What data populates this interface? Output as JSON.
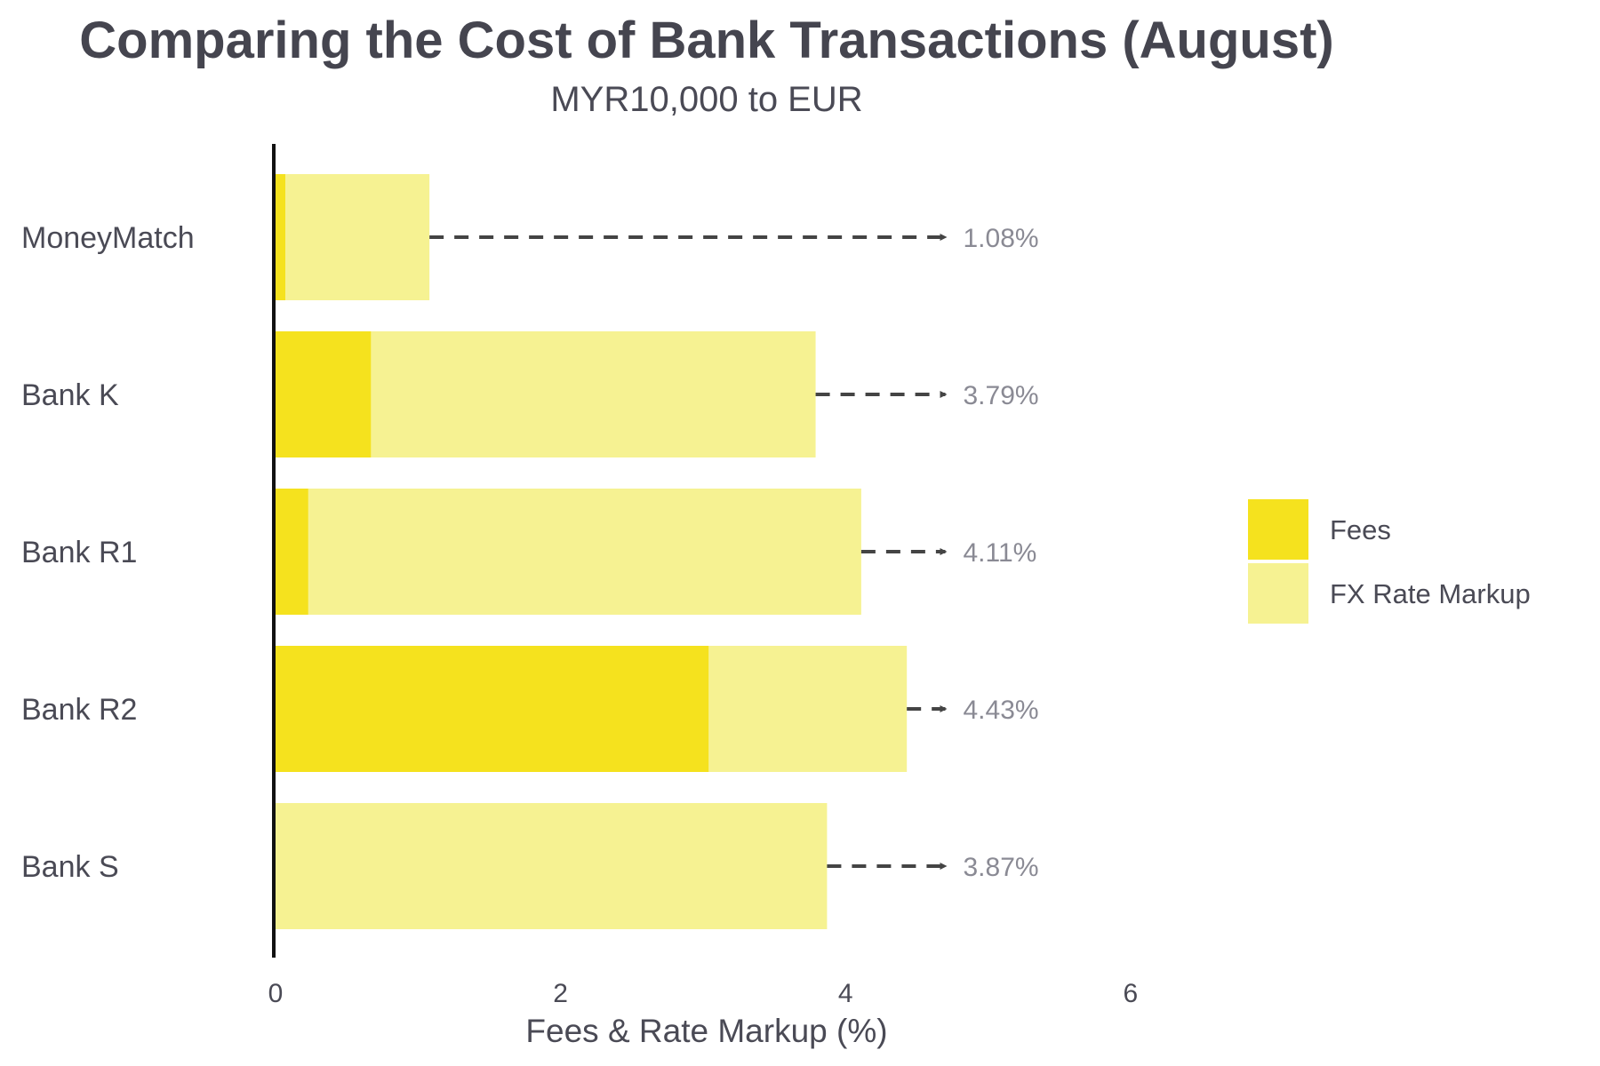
{
  "chart_data": {
    "type": "bar",
    "orientation": "horizontal",
    "stacked": true,
    "title": "Comparing the Cost of Bank Transactions (August)",
    "subtitle": "MYR10,000 to EUR",
    "xlabel": "Fees & Rate Markup (%)",
    "ylabel": "",
    "xlim": [
      0,
      6.4
    ],
    "xticks": [
      0,
      2,
      4,
      6
    ],
    "grid": false,
    "legend_position": "right",
    "categories": [
      "MoneyMatch",
      "Bank K",
      "Bank R1",
      "Bank R2",
      "Bank S"
    ],
    "series": [
      {
        "name": "Fees",
        "color": "#f5e21e",
        "values": [
          0.07,
          0.67,
          0.23,
          3.04,
          0.0
        ]
      },
      {
        "name": "FX Rate Markup",
        "color": "#f6f292",
        "values": [
          1.01,
          3.12,
          3.88,
          1.39,
          3.87
        ]
      }
    ],
    "totals": [
      1.08,
      3.79,
      4.11,
      4.43,
      3.87
    ],
    "total_labels": [
      "1.08%",
      "3.79%",
      "4.11%",
      "4.43%",
      "3.87%"
    ],
    "arrow_end": 4.75
  }
}
